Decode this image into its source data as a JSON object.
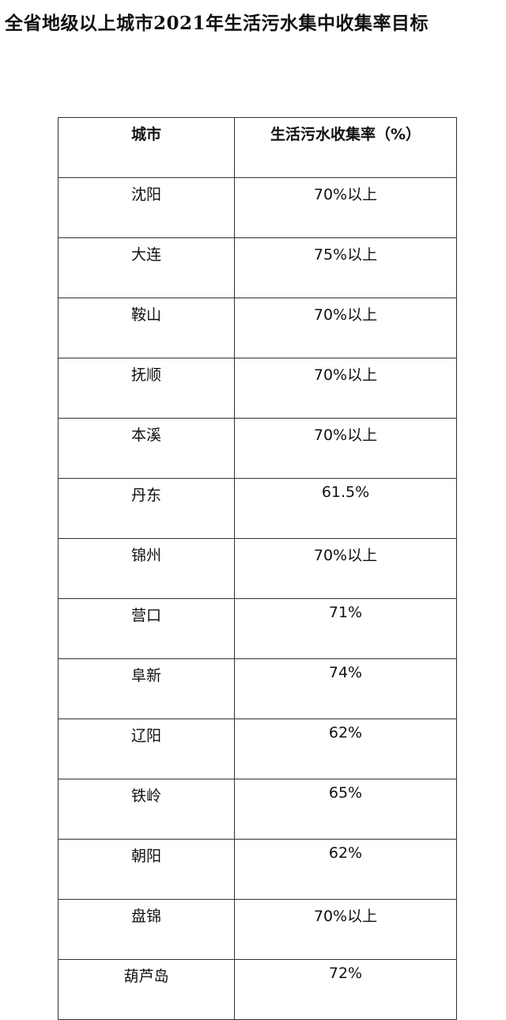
{
  "header": {
    "title": "全省地级以上城市2021年生活污水集中收集率目标"
  },
  "table": {
    "columns": [
      "城市",
      "生活污水收集率（%）"
    ],
    "rows": [
      [
        "沈阳",
        "70%以上"
      ],
      [
        "大连",
        "75%以上"
      ],
      [
        "鞍山",
        "70%以上"
      ],
      [
        "抚顺",
        "70%以上"
      ],
      [
        "本溪",
        "70%以上"
      ],
      [
        "丹东",
        "61.5%"
      ],
      [
        "锦州",
        "70%以上"
      ],
      [
        "营口",
        "71%"
      ],
      [
        "阜新",
        "74%"
      ],
      [
        "辽阳",
        "62%"
      ],
      [
        "铁岭",
        "65%"
      ],
      [
        "朝阳",
        "62%"
      ],
      [
        "盘锦",
        "70%以上"
      ],
      [
        "葫芦岛",
        "72%"
      ]
    ]
  }
}
